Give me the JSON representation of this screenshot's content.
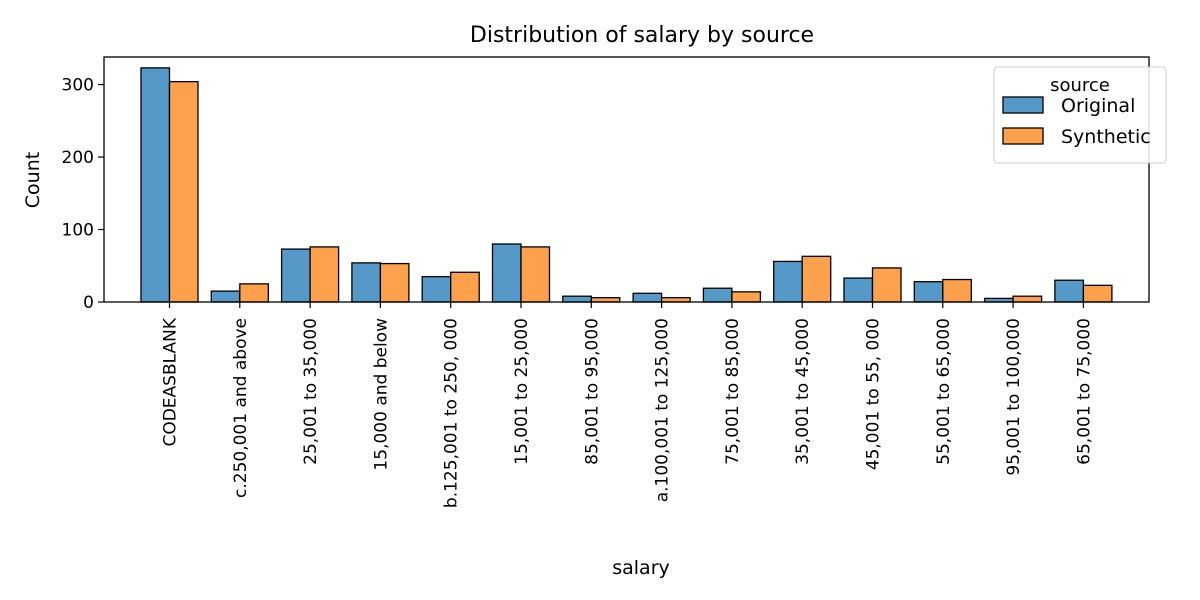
{
  "chart_data": {
    "type": "bar",
    "title": "Distribution of salary by source",
    "xlabel": "salary",
    "ylabel": "Count",
    "ylim": [
      0,
      338
    ],
    "yticks": [
      0,
      100,
      200,
      300
    ],
    "grid": false,
    "legend": {
      "title": "source",
      "placement": "top-right"
    },
    "categories": [
      "CODEASBLANK",
      "c.250,001 and above",
      "25,001 to 35,000",
      "15,000 and below",
      "b.125,001 to 250, 000",
      "15,001 to 25,000",
      "85,001 to 95,000",
      "a.100,001 to 125,000",
      "75,001 to 85,000",
      "35,001 to 45,000",
      "45,001 to 55, 000",
      "55,001 to 65,000",
      "95,001 to 100,000",
      "65,001 to 75,000"
    ],
    "series": [
      {
        "name": "Original",
        "color": "#5499c7",
        "values": [
          323,
          15,
          73,
          54,
          35,
          80,
          8,
          12,
          19,
          56,
          33,
          28,
          5,
          30
        ]
      },
      {
        "name": "Synthetic",
        "color": "#ffa04d",
        "values": [
          304,
          25,
          76,
          53,
          41,
          76,
          6,
          6,
          14,
          63,
          47,
          31,
          8,
          23
        ]
      }
    ]
  }
}
